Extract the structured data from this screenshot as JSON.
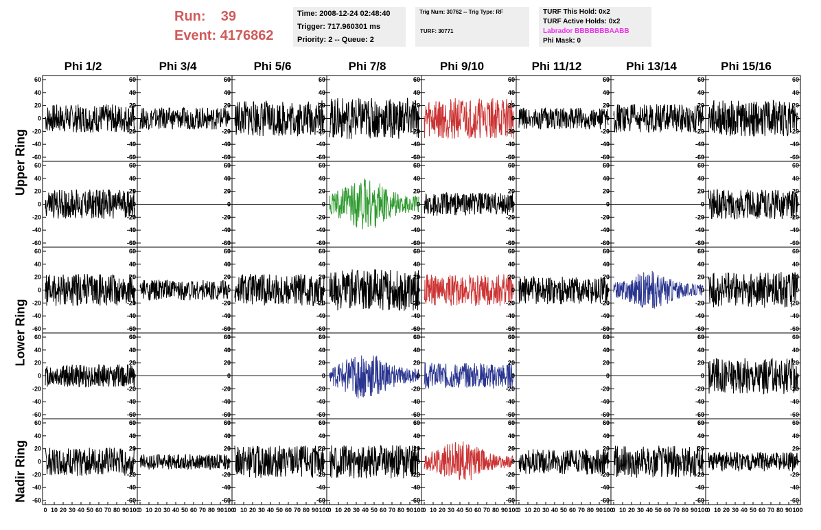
{
  "run_info": {
    "run_label": "Run:",
    "run_value": "39",
    "event_label": "Event:",
    "event_value": "4176862"
  },
  "time_box": {
    "time": "Time: 2008-12-24 02:48:40",
    "trigger": "Trigger: 717.960301 ms",
    "priority": "Priority: 2 -- Queue: 2"
  },
  "trig_box": {
    "trig": "Trig Num: 30762 -- Trig Type: RF",
    "turf": "TURF: 30771"
  },
  "turf_box": {
    "this_hold": "TURF This Hold: 0x2",
    "active_holds": "TURF Active Holds: 0x2",
    "labrador": "Labrador BBBBBBBAABB",
    "phi_mask": "Phi Mask: 0"
  },
  "colors": {
    "black": "#000000",
    "red": "#cc3333",
    "green": "#2e9a2e",
    "blue": "#2a3590"
  },
  "chart_data": {
    "type": "line",
    "columns": [
      "Phi 1/2",
      "Phi 3/4",
      "Phi 5/6",
      "Phi 7/8",
      "Phi 9/10",
      "Phi 11/12",
      "Phi 13/14",
      "Phi 15/16"
    ],
    "ring_labels": [
      "Upper Ring",
      "Lower Ring",
      "Nadir Ring"
    ],
    "ylim": [
      -60,
      60
    ],
    "xlim": [
      0,
      100
    ],
    "y_ticks": [
      -60,
      -40,
      -20,
      0,
      20,
      40,
      60
    ],
    "x_ticks": [
      "0",
      "10",
      "20",
      "30",
      "40",
      "50",
      "60",
      "70",
      "80",
      "90",
      "100"
    ],
    "panels": [
      [
        {
          "amp": 22,
          "color": "black"
        },
        {
          "amp": 17,
          "color": "black"
        },
        {
          "amp": 28,
          "color": "black"
        },
        {
          "amp": 32,
          "color": "black"
        },
        {
          "amp": 32,
          "color": "red"
        },
        {
          "amp": 17,
          "color": "black"
        },
        {
          "amp": 22,
          "color": "black"
        },
        {
          "amp": 28,
          "color": "black"
        }
      ],
      [
        {
          "amp": 23,
          "color": "black"
        },
        {
          "amp": 0,
          "color": "black"
        },
        {
          "amp": 0,
          "color": "black"
        },
        {
          "amp": 34,
          "color": "green",
          "burst": true
        },
        {
          "amp": 18,
          "color": "black"
        },
        {
          "amp": 0,
          "color": "black"
        },
        {
          "amp": 0,
          "color": "black"
        },
        {
          "amp": 23,
          "color": "black"
        }
      ],
      [
        {
          "amp": 25,
          "color": "black"
        },
        {
          "amp": 16,
          "color": "black"
        },
        {
          "amp": 25,
          "color": "black"
        },
        {
          "amp": 32,
          "color": "black"
        },
        {
          "amp": 25,
          "color": "red"
        },
        {
          "amp": 22,
          "color": "black"
        },
        {
          "amp": 24,
          "color": "blue",
          "burst": true
        },
        {
          "amp": 28,
          "color": "black"
        }
      ],
      [
        {
          "amp": 18,
          "color": "black"
        },
        {
          "amp": 0,
          "color": "black"
        },
        {
          "amp": 0,
          "color": "black"
        },
        {
          "amp": 30,
          "color": "blue",
          "burst": true
        },
        {
          "amp": 20,
          "color": "blue"
        },
        {
          "amp": 0,
          "color": "black"
        },
        {
          "amp": 0,
          "color": "black"
        },
        {
          "amp": 28,
          "color": "black"
        }
      ],
      [
        {
          "amp": 22,
          "color": "black"
        },
        {
          "amp": 12,
          "color": "black"
        },
        {
          "amp": 25,
          "color": "black"
        },
        {
          "amp": 26,
          "color": "black"
        },
        {
          "amp": 26,
          "color": "red",
          "burst": true
        },
        {
          "amp": 20,
          "color": "black"
        },
        {
          "amp": 25,
          "color": "black"
        },
        {
          "amp": 15,
          "color": "black"
        }
      ]
    ]
  }
}
